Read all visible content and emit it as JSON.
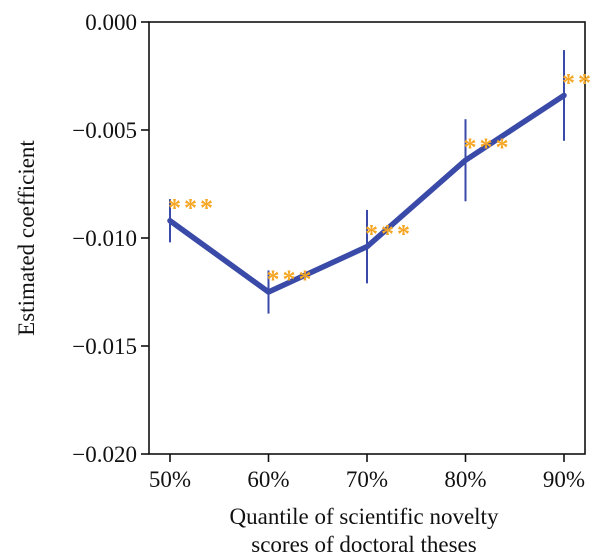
{
  "chart_data": {
    "type": "line",
    "title": "",
    "xlabel": "Quantile of scientific novelty scores of doctoral theses",
    "xlabel_lines": [
      "Quantile of scientific novelty",
      "scores of doctoral theses"
    ],
    "ylabel": "Estimated coefficient",
    "categories": [
      "50%",
      "60%",
      "70%",
      "80%",
      "90%"
    ],
    "series": [
      {
        "values": [
          -0.0092,
          -0.0125,
          -0.0104,
          -0.0064,
          -0.0034
        ],
        "ci_lower": [
          -0.0102,
          -0.0135,
          -0.0121,
          -0.0083,
          -0.0055
        ],
        "ci_upper": [
          -0.0082,
          -0.0115,
          -0.0087,
          -0.0045,
          -0.0013
        ],
        "significance": [
          "***",
          "***",
          "***",
          "***",
          "***"
        ]
      }
    ],
    "ylim": [
      -0.02,
      0.0
    ],
    "yticks": [
      0.0,
      -0.005,
      -0.01,
      -0.015,
      -0.02
    ],
    "ytick_labels": [
      "0.000",
      "−0.005",
      "−0.010",
      "−0.015",
      "−0.020"
    ],
    "grid": false,
    "legend": "none",
    "colors": {
      "line": "#3a4aa8",
      "significance": "#f5a623",
      "axis": "#111111"
    }
  }
}
